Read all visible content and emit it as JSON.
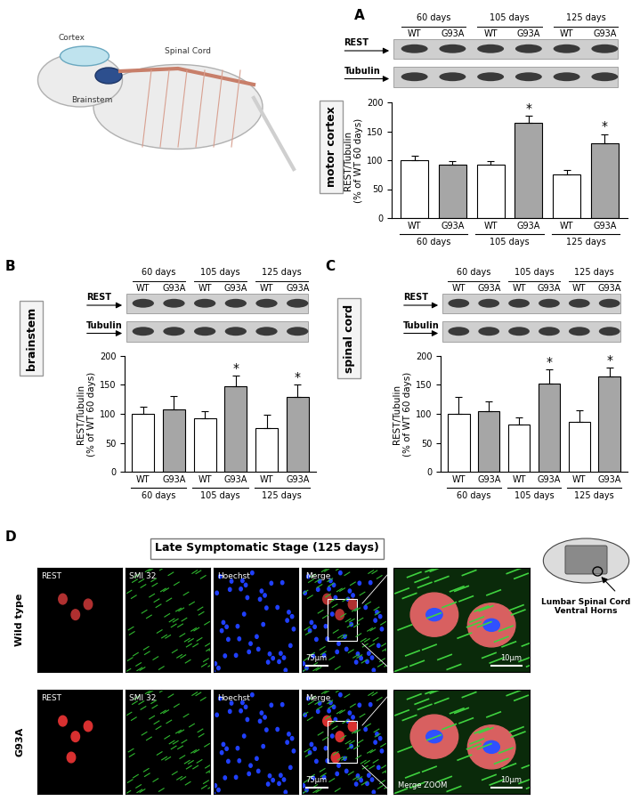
{
  "chart_data": [
    {
      "type": "bar",
      "panel": "A",
      "region": "motor cortex",
      "groups": [
        "60 days",
        "105 days",
        "125 days"
      ],
      "categories": [
        "WT",
        "G93A",
        "WT",
        "G93A",
        "WT",
        "G93A"
      ],
      "values": [
        100,
        92,
        92,
        165,
        75,
        130
      ],
      "errors": [
        8,
        7,
        6,
        12,
        8,
        15
      ],
      "colors": [
        "#ffffff",
        "#a6a6a6",
        "#ffffff",
        "#a6a6a6",
        "#ffffff",
        "#a6a6a6"
      ],
      "significant": [
        false,
        false,
        false,
        true,
        false,
        true
      ],
      "significance_label": "*",
      "ylabel": "REST/Tubulin\n(% of WT 60 days)",
      "ylim": [
        0,
        200
      ],
      "yticks": [
        0,
        50,
        100,
        150,
        200
      ],
      "blot_bands": [
        "REST",
        "Tubulin"
      ]
    },
    {
      "type": "bar",
      "panel": "B",
      "region": "brainstem",
      "groups": [
        "60 days",
        "105 days",
        "125 days"
      ],
      "categories": [
        "WT",
        "G93A",
        "WT",
        "G93A",
        "WT",
        "G93A"
      ],
      "values": [
        100,
        108,
        92,
        148,
        75,
        130
      ],
      "errors": [
        12,
        23,
        13,
        18,
        23,
        20
      ],
      "colors": [
        "#ffffff",
        "#a6a6a6",
        "#ffffff",
        "#a6a6a6",
        "#ffffff",
        "#a6a6a6"
      ],
      "significant": [
        false,
        false,
        false,
        true,
        false,
        true
      ],
      "significance_label": "*",
      "ylabel": "REST/Tubulin\n(% of WT 60 days)",
      "ylim": [
        0,
        200
      ],
      "yticks": [
        0,
        50,
        100,
        150,
        200
      ],
      "blot_bands": [
        "REST",
        "Tubulin"
      ]
    },
    {
      "type": "bar",
      "panel": "C",
      "region": "spinal cord",
      "groups": [
        "60 days",
        "105 days",
        "125 days"
      ],
      "categories": [
        "WT",
        "G93A",
        "WT",
        "G93A",
        "WT",
        "G93A"
      ],
      "values": [
        100,
        104,
        82,
        152,
        86,
        164
      ],
      "errors": [
        30,
        17,
        12,
        25,
        20,
        16
      ],
      "colors": [
        "#ffffff",
        "#a6a6a6",
        "#ffffff",
        "#a6a6a6",
        "#ffffff",
        "#a6a6a6"
      ],
      "significant": [
        false,
        false,
        false,
        true,
        false,
        true
      ],
      "significance_label": "*",
      "ylabel": "REST/Tubulin\n(% of WT 60 days)",
      "ylim": [
        0,
        200
      ],
      "yticks": [
        0,
        50,
        100,
        150,
        200
      ],
      "blot_bands": [
        "REST",
        "Tubulin"
      ]
    }
  ],
  "illustration": {
    "labels": [
      "Cortex",
      "Spinal Cord",
      "Brainstem"
    ]
  },
  "panel_d": {
    "letter": "D",
    "title": "Late Symptomatic Stage (125 days)",
    "rows": [
      "Wild type",
      "G93A"
    ],
    "channels": [
      "REST",
      "SMI 32",
      "Hoechst",
      "Merge"
    ],
    "zoom_label": "Merge ZOOM",
    "scale_bars": [
      "75µm",
      "10µm"
    ],
    "schematic_label": "Lumbar Spinal Cord\nVentral Horns"
  }
}
